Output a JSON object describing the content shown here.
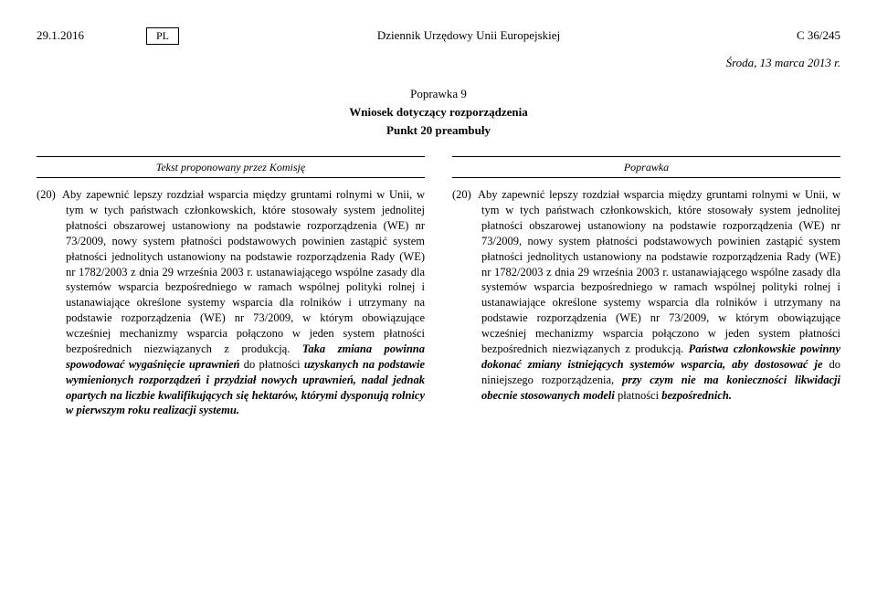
{
  "header": {
    "date": "29.1.2016",
    "lang": "PL",
    "journal": "Dziennik Urzędowy Unii Europejskiej",
    "pageRef": "C 36/245"
  },
  "sessionDate": "Środa, 13 marca 2013 r.",
  "amendment": {
    "label": "Poprawka 9",
    "scope": "Wniosek dotyczący rozporządzenia",
    "point": "Punkt 20 preambuły"
  },
  "columns": {
    "leftHeading": "Tekst proponowany przez Komisję",
    "rightHeading": "Poprawka",
    "num": "(20)",
    "leftText": {
      "part1": "Aby zapewnić lepszy rozdział wsparcia między gruntami rolnymi w Unii, w tym w tych państwach członkowskich, które stosowały system jednolitej płatności obszarowej ustanowiony na podstawie rozporządzenia (WE) nr 73/2009, nowy system płatności podstawowych powinien zastąpić system płatności jednolitych ustanowiony na podstawie rozporządzenia Rady (WE) nr 1782/2003 z dnia 29 września 2003 r. ustanawiającego wspólne zasady dla systemów wsparcia bezpośredniego w ramach wspólnej polityki rolnej i ustanawiające określone systemy wsparcia dla rolników i utrzymany na podstawie rozporządzenia (WE) nr 73/2009, w którym obowiązujące wcześniej mechanizmy wsparcia połączono w jeden system płatności bezpośrednich niezwiązanych z produkcją. ",
      "bold1": "Taka zmiana powinna spowodować wygaśnięcie uprawnień",
      "mid1": " do płatności ",
      "bold2": "uzyskanych na podstawie wymienionych rozporządzeń i przydział nowych uprawnień, nadal jednak opartych na liczbie kwalifikujących się hektarów, którymi dysponują rolnicy w pierwszym roku realizacji systemu."
    },
    "rightText": {
      "part1": "Aby zapewnić lepszy rozdział wsparcia między gruntami rolnymi w Unii, w tym w tych państwach członkowskich, które stosowały system jednolitej płatności obszarowej ustanowiony na podstawie rozporządzenia (WE) nr 73/2009, nowy system płatności podstawowych powinien zastąpić system płatności jednolitych ustanowiony na podstawie rozporządzenia Rady (WE) nr 1782/2003 z dnia 29 września 2003 r. ustanawiającego wspólne zasady dla systemów wsparcia bezpośredniego w ramach wspólnej polityki rolnej i ustanawiające określone systemy wsparcia dla rolników i utrzymany na podstawie rozporządzenia (WE) nr 73/2009, w którym obowiązujące wcześniej mechanizmy wsparcia połączono w jeden system płatności bezpośrednich niezwiązanych z produkcją. ",
      "bold1": "Państwa członkowskie powinny dokonać zmiany istniejących systemów wsparcia, aby dostosować je",
      "mid1": " do niniejszego rozporządzenia, ",
      "bold2": "przy czym nie ma konieczności likwidacji obecnie stosowanych modeli",
      "tail": " płatności ",
      "bold3": "bezpośrednich."
    }
  }
}
